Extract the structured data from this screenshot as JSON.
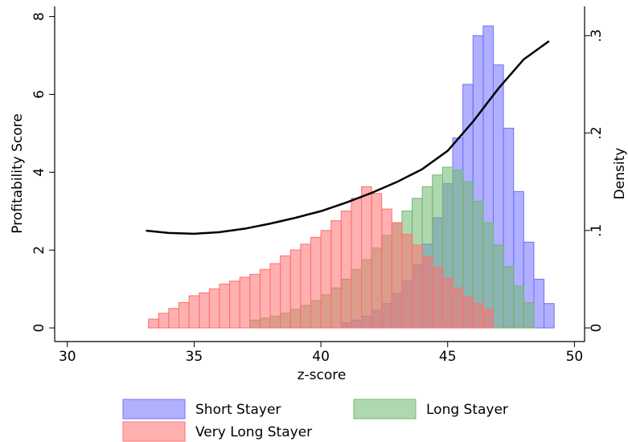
{
  "chart_data": {
    "type": "histogram",
    "xlabel": "z-score",
    "ylabel": "Profitability Score",
    "y2label": "Density",
    "xlim": [
      29.5,
      50.4
    ],
    "xticks": [
      30,
      35,
      40,
      45,
      50
    ],
    "ylim": [
      -0.35,
      8.26
    ],
    "yticks": [
      0,
      2,
      4,
      6,
      8
    ],
    "y2lim": [
      -0.014,
      0.33
    ],
    "y2ticks": [
      0,
      {
        "value": 0.1,
        "label": ".1"
      },
      {
        "value": 0.2,
        "label": ".2"
      },
      {
        "value": 0.3,
        "label": ".3"
      }
    ],
    "series": [
      {
        "name": "Short Stayer",
        "color": "#7070ff",
        "axis": "y2",
        "bins": [
          40.8,
          41.2,
          41.6,
          42.0,
          42.4,
          42.8,
          43.2,
          43.6,
          44.0,
          44.4,
          44.8,
          45.2,
          45.6,
          46.0,
          46.4,
          46.8,
          47.2,
          47.6,
          48.0,
          48.4,
          48.8,
          49.2
        ],
        "values": [
          0.005,
          0.008,
          0.012,
          0.018,
          0.025,
          0.035,
          0.048,
          0.065,
          0.086,
          0.113,
          0.148,
          0.195,
          0.25,
          0.3,
          0.31,
          0.27,
          0.205,
          0.14,
          0.088,
          0.05,
          0.025
        ]
      },
      {
        "name": "Long Stayer",
        "color": "#70b870",
        "axis": "y2",
        "bins": [
          37.2,
          37.6,
          38.0,
          38.4,
          38.8,
          39.2,
          39.6,
          40.0,
          40.4,
          40.8,
          41.2,
          41.6,
          42.0,
          42.4,
          42.8,
          43.2,
          43.6,
          44.0,
          44.4,
          44.8,
          45.2,
          45.6,
          46.0,
          46.4,
          46.8,
          47.2,
          47.6,
          48.0,
          48.4
        ],
        "values": [
          0.008,
          0.01,
          0.012,
          0.015,
          0.019,
          0.023,
          0.028,
          0.034,
          0.041,
          0.05,
          0.06,
          0.07,
          0.082,
          0.095,
          0.108,
          0.12,
          0.133,
          0.145,
          0.157,
          0.165,
          0.162,
          0.15,
          0.13,
          0.108,
          0.085,
          0.063,
          0.043,
          0.026
        ]
      },
      {
        "name": "Very Long Stayer",
        "color": "#ff7070",
        "axis": "y2",
        "bins": [
          33.2,
          33.6,
          34.0,
          34.4,
          34.8,
          35.2,
          35.6,
          36.0,
          36.4,
          36.8,
          37.2,
          37.6,
          38.0,
          38.4,
          38.8,
          39.2,
          39.6,
          40.0,
          40.4,
          40.8,
          41.2,
          41.6,
          42.0,
          42.4,
          42.8,
          43.2,
          43.6,
          44.0,
          44.4,
          44.8,
          45.2,
          45.6,
          46.0,
          46.4,
          46.8
        ],
        "values": [
          0.009,
          0.015,
          0.02,
          0.026,
          0.033,
          0.036,
          0.04,
          0.045,
          0.048,
          0.052,
          0.055,
          0.06,
          0.066,
          0.074,
          0.08,
          0.086,
          0.093,
          0.1,
          0.11,
          0.12,
          0.133,
          0.145,
          0.138,
          0.122,
          0.108,
          0.096,
          0.085,
          0.073,
          0.062,
          0.051,
          0.041,
          0.032,
          0.025,
          0.019
        ]
      }
    ],
    "line": {
      "color": "#000000",
      "x": [
        33.1,
        34,
        35,
        36,
        37,
        38,
        39,
        40,
        41,
        42,
        43,
        44,
        45,
        46,
        47,
        48,
        49
      ],
      "values": [
        2.5,
        2.44,
        2.42,
        2.46,
        2.55,
        2.68,
        2.83,
        3.0,
        3.22,
        3.47,
        3.75,
        4.08,
        4.55,
        5.3,
        6.15,
        6.9,
        7.37
      ]
    }
  }
}
